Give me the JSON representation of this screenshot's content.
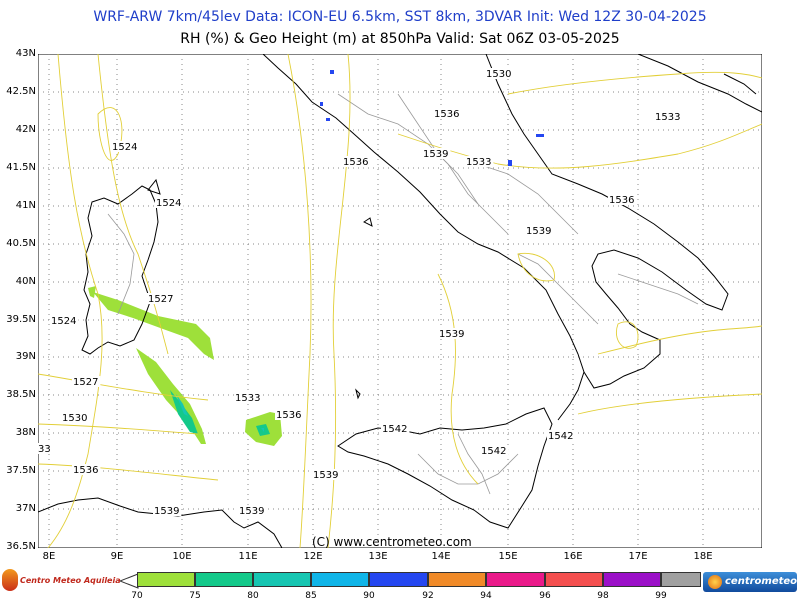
{
  "header": {
    "line1": "WRF-ARW 7km/45lev  Data: ICON-EU 6.5km, SST 8km, 3DVAR  Init: Wed 12Z 30-04-2025",
    "line2": "RH (%) & Geo Height (m) at 850hPa  Valid: Sat 06Z 03-05-2025"
  },
  "latitude_labels": [
    "43N",
    "42.5N",
    "42N",
    "41.5N",
    "41N",
    "40.5N",
    "40N",
    "39.5N",
    "39N",
    "38.5N",
    "38N",
    "37.5N",
    "37N",
    "36.5N"
  ],
  "longitude_labels": [
    "8E",
    "9E",
    "10E",
    "11E",
    "12E",
    "13E",
    "14E",
    "15E",
    "16E",
    "17E",
    "18E"
  ],
  "contour_labels": [
    {
      "text": "1530",
      "pos": "adriatic-north"
    },
    {
      "text": "1533",
      "pos": "adriatic-east"
    },
    {
      "text": "1536",
      "pos": "abruzzo"
    },
    {
      "text": "1524",
      "pos": "corsica"
    },
    {
      "text": "1536",
      "pos": "lazio"
    },
    {
      "text": "1539",
      "pos": "molise"
    },
    {
      "text": "1533",
      "pos": "campania-north"
    },
    {
      "text": "1524",
      "pos": "sardinia-north"
    },
    {
      "text": "1536",
      "pos": "puglia"
    },
    {
      "text": "1539",
      "pos": "basilicata"
    },
    {
      "text": "1527",
      "pos": "sardinia-east"
    },
    {
      "text": "1524",
      "pos": "sardinia-west"
    },
    {
      "text": "1539",
      "pos": "tyrrhenian"
    },
    {
      "text": "1527",
      "pos": "sardinia-south"
    },
    {
      "text": "1533",
      "pos": "sicily-channel-north"
    },
    {
      "text": "1536",
      "pos": "sicily-channel-east"
    },
    {
      "text": "1530",
      "pos": "sardinia-southwest"
    },
    {
      "text": "1542",
      "pos": "sicily-north"
    },
    {
      "text": "1542",
      "pos": "calabria-south"
    },
    {
      "text": "1542",
      "pos": "sicily-center"
    },
    {
      "text": "33",
      "pos": "west-edge"
    },
    {
      "text": "1536",
      "pos": "tunisia-north"
    },
    {
      "text": "1539",
      "pos": "strait-sicily"
    },
    {
      "text": "1539",
      "pos": "tunisia"
    },
    {
      "text": "1539",
      "pos": "pantelleria"
    }
  ],
  "credit": "(C) www.centrometeo.com",
  "legend": {
    "left_logo_text": "Centro Meteo Aquileia",
    "right_logo_text": "centrometeo",
    "colors": [
      "#9ee03a",
      "#14c98a",
      "#17c6b2",
      "#10b5e8",
      "#2547f0",
      "#f08a28",
      "#ea1a8a",
      "#f44f4f",
      "#9b10c8",
      "#a0a0a0"
    ],
    "labels": [
      "70",
      "75",
      "80",
      "85",
      "90",
      "92",
      "94",
      "96",
      "98",
      "99"
    ]
  }
}
